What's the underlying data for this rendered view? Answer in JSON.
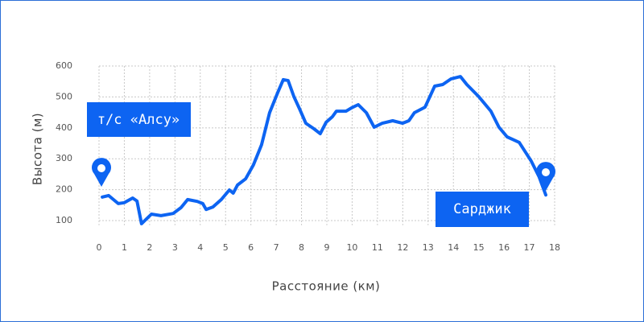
{
  "chart_data": {
    "type": "line",
    "xlabel": "Расстояние (км)",
    "ylabel": "Высота (м)",
    "x": [
      0.13,
      0.38,
      0.76,
      1.0,
      1.33,
      1.5,
      1.68,
      2.07,
      2.45,
      2.93,
      3.24,
      3.5,
      3.88,
      4.1,
      4.23,
      4.5,
      4.83,
      5.15,
      5.3,
      5.47,
      5.79,
      6.1,
      6.42,
      6.74,
      7.06,
      7.28,
      7.47,
      7.7,
      7.92,
      8.17,
      8.49,
      8.74,
      8.97,
      9.22,
      9.38,
      9.76,
      9.98,
      10.24,
      10.56,
      10.87,
      11.19,
      11.6,
      11.99,
      12.24,
      12.46,
      12.88,
      13.26,
      13.58,
      13.9,
      14.28,
      14.53,
      15.0,
      15.48,
      15.8,
      16.12,
      16.6,
      17.07,
      17.39,
      17.65
    ],
    "series": [
      {
        "name": "Высота",
        "color": "#0d64f2",
        "values": [
          176,
          181,
          155,
          158,
          173,
          163,
          90,
          121,
          116,
          123,
          142,
          168,
          162,
          155,
          136,
          144,
          168,
          199,
          189,
          215,
          235,
          280,
          345,
          449,
          514,
          556,
          553,
          501,
          462,
          415,
          397,
          381,
          418,
          436,
          454,
          454,
          465,
          475,
          449,
          402,
          415,
          423,
          415,
          423,
          449,
          467,
          535,
          540,
          558,
          566,
          540,
          501,
          454,
          402,
          371,
          353,
          293,
          241,
          183
        ]
      }
    ],
    "xlim": [
      0,
      18
    ],
    "xticks": [
      0,
      1,
      2,
      3,
      4,
      5,
      6,
      7,
      8,
      9,
      10,
      11,
      12,
      13,
      14,
      15,
      16,
      17,
      18
    ],
    "ylim": [
      85,
      600
    ],
    "yticks": [
      100,
      200,
      300,
      400,
      500,
      600
    ],
    "grid": true,
    "annotations": [
      {
        "text": "т/с «Алсу»"
      },
      {
        "text": "Сарджик"
      }
    ]
  }
}
